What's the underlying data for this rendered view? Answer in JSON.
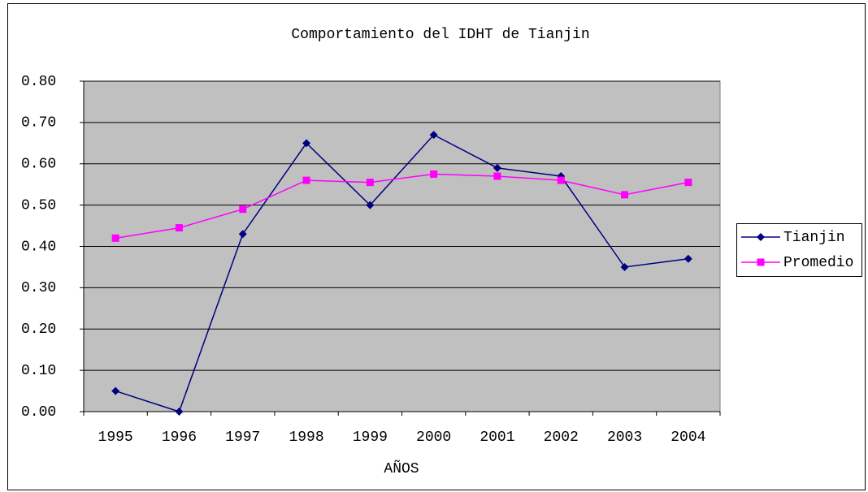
{
  "chart_data": {
    "type": "line",
    "title": "Comportamiento del IDHT de Tianjin",
    "x_label": "AÑOS",
    "categories": [
      "1995",
      "1996",
      "1997",
      "1998",
      "1999",
      "2000",
      "2001",
      "2002",
      "2003",
      "2004"
    ],
    "series": [
      {
        "name": "Tianjin",
        "color": "#000080",
        "marker": "diamond",
        "values": [
          0.05,
          0.0,
          0.43,
          0.65,
          0.5,
          0.67,
          0.59,
          0.57,
          0.35,
          0.37
        ]
      },
      {
        "name": "Promedio",
        "color": "#ff00ff",
        "marker": "square",
        "values": [
          0.42,
          0.445,
          0.49,
          0.56,
          0.555,
          0.575,
          0.57,
          0.56,
          0.525,
          0.555
        ]
      }
    ],
    "ylim": [
      0,
      0.8
    ],
    "yticks": [
      {
        "value": 0,
        "label": "0.00"
      },
      {
        "value": 0.1,
        "label": "0.10"
      },
      {
        "value": 0.2,
        "label": "0.20"
      },
      {
        "value": 0.3,
        "label": "0.30"
      },
      {
        "value": 0.4,
        "label": "0.40"
      },
      {
        "value": 0.5,
        "label": "0.50"
      },
      {
        "value": 0.6,
        "label": "0.60"
      },
      {
        "value": 0.7,
        "label": "0.70"
      },
      {
        "value": 0.8,
        "label": "0.80"
      }
    ],
    "grid": true,
    "plot_background": "#c0c0c0",
    "legend": "right"
  }
}
